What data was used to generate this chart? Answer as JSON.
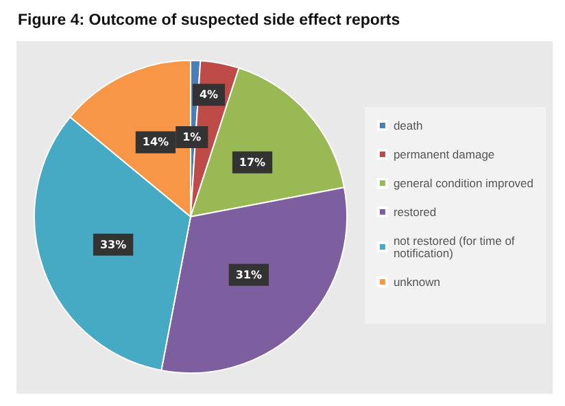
{
  "chart_data": {
    "type": "pie",
    "title": "Figure 4: Outcome of suspected side effect reports",
    "categories": [
      "death",
      "permanent damage",
      "general condition improved",
      "restored",
      "not restored (for time of notification)",
      "unknown"
    ],
    "values": [
      1,
      4,
      17,
      31,
      33,
      14
    ],
    "colors": [
      "#4a7ebb",
      "#be4b48",
      "#98b954",
      "#7d5fa0",
      "#46aac5",
      "#f79646"
    ],
    "value_labels": [
      "1%",
      "4%",
      "17%",
      "31%",
      "33%",
      "14%"
    ],
    "legend": "right"
  }
}
